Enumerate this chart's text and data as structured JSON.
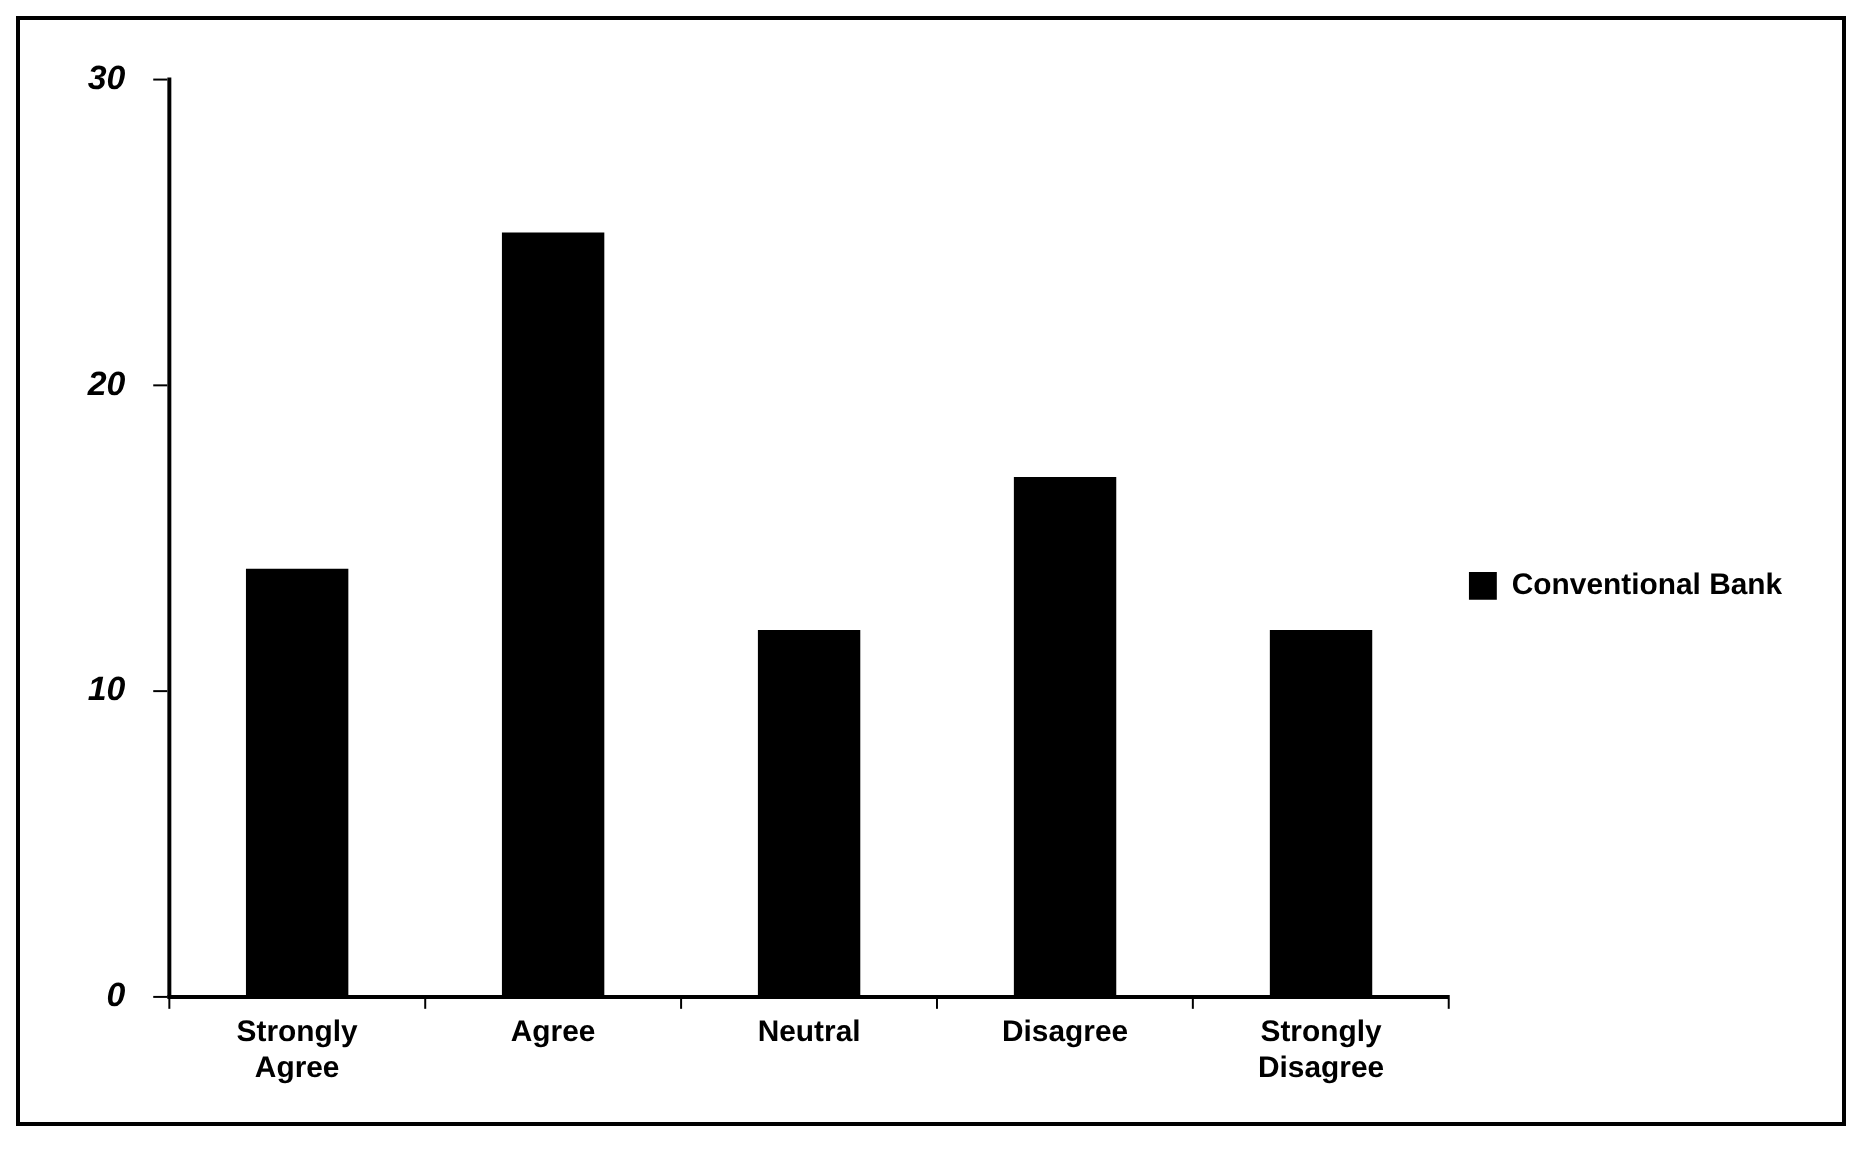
{
  "chart_data": {
    "type": "bar",
    "categories": [
      "Strongly Agree",
      "Agree",
      "Neutral",
      "Disagree",
      "Strongly Disagree"
    ],
    "series": [
      {
        "name": "Conventional Bank",
        "color": "#000000",
        "values": [
          14,
          25,
          12,
          17,
          12
        ]
      }
    ],
    "ylim": [
      0,
      30
    ],
    "yticks": [
      0,
      10,
      20,
      30
    ],
    "grid": false,
    "legend": "right"
  }
}
